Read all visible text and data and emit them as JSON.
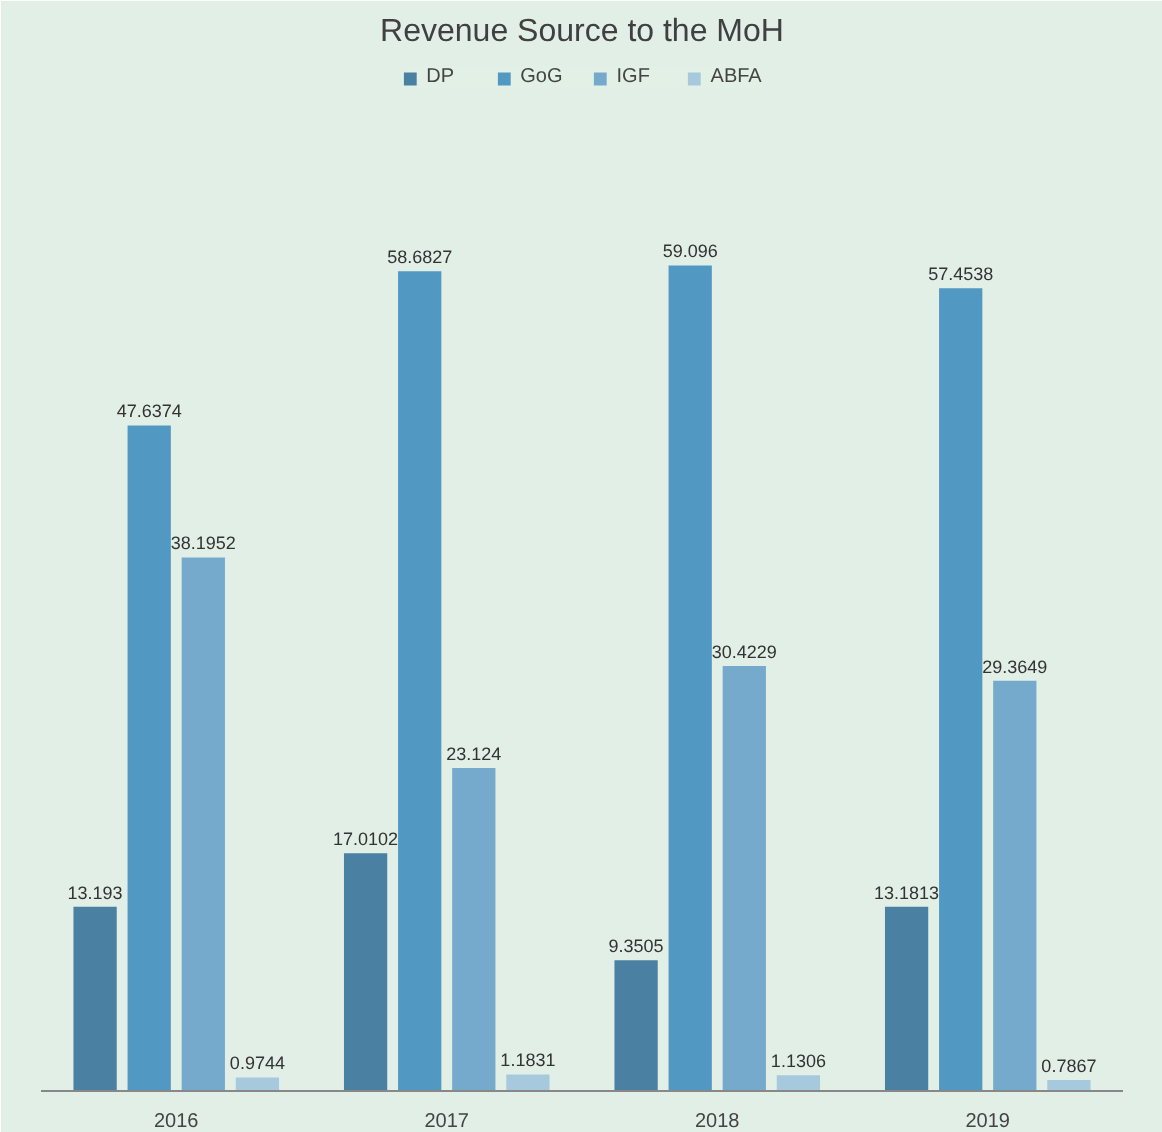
{
  "chart_data": {
    "type": "bar",
    "title": "Revenue Source to the MoH",
    "categories": [
      "2016",
      "2017",
      "2018",
      "2019"
    ],
    "series": [
      {
        "name": "DP",
        "color": "#4a80a2",
        "values": [
          13.193,
          17.0102,
          9.3505,
          13.1813
        ]
      },
      {
        "name": "GoG",
        "color": "#5199c2",
        "values": [
          47.6374,
          58.6827,
          59.096,
          57.4538
        ]
      },
      {
        "name": "IGF",
        "color": "#76aacc",
        "values": [
          38.1952,
          23.124,
          30.4229,
          29.3649
        ]
      },
      {
        "name": "ABFA",
        "color": "#a6c9dd",
        "values": [
          0.9744,
          1.1831,
          1.1306,
          0.7867
        ]
      }
    ],
    "data_labels": true,
    "legend": "top",
    "grid": false
  }
}
